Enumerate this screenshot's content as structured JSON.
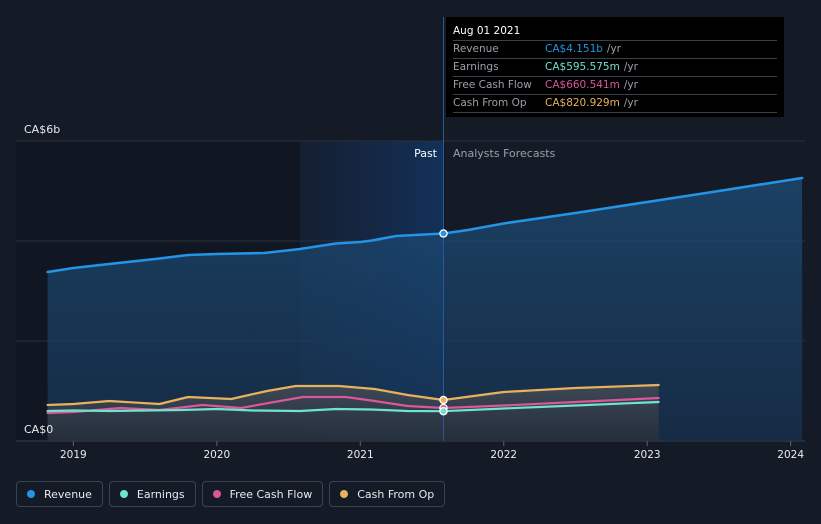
{
  "tooltip": {
    "date": "Aug 01 2021",
    "rows": [
      {
        "label": "Revenue",
        "value": "CA$4.151b",
        "unit": "/yr",
        "color": "#2394e6"
      },
      {
        "label": "Earnings",
        "value": "CA$595.575m",
        "unit": "/yr",
        "color": "#6fe3cc"
      },
      {
        "label": "Free Cash Flow",
        "value": "CA$660.541m",
        "unit": "/yr",
        "color": "#d9579a"
      },
      {
        "label": "Cash From Op",
        "value": "CA$820.929m",
        "unit": "/yr",
        "color": "#e8b25c"
      }
    ]
  },
  "sections": {
    "past": "Past",
    "forecast": "Analysts Forecasts"
  },
  "legend": [
    {
      "label": "Revenue",
      "color": "#2394e6"
    },
    {
      "label": "Earnings",
      "color": "#6fe3cc"
    },
    {
      "label": "Free Cash Flow",
      "color": "#d9579a"
    },
    {
      "label": "Cash From Op",
      "color": "#e8b25c"
    }
  ],
  "chart_data": {
    "type": "line",
    "y_unit": "CA$",
    "ylim": [
      0,
      6
    ],
    "y_tick_labels": [
      "CA$0",
      "CA$6b"
    ],
    "x_tick_labels": [
      "2019",
      "2020",
      "2021",
      "2022",
      "2023",
      "2024"
    ],
    "xlim": [
      2018.6,
      2024.1
    ],
    "past_end": 2021.58,
    "grid": true,
    "series": [
      {
        "name": "Revenue",
        "color": "#2394e6",
        "unit": "billions",
        "x": [
          2018.82,
          2019.0,
          2019.25,
          2019.6,
          2019.8,
          2020.0,
          2020.33,
          2020.58,
          2020.83,
          2021.0,
          2021.08,
          2021.25,
          2021.58,
          2021.75,
          2022.0,
          2022.5,
          2023.0,
          2023.5,
          2024.08
        ],
        "values": [
          3.38,
          3.46,
          3.54,
          3.65,
          3.72,
          3.74,
          3.76,
          3.84,
          3.95,
          3.98,
          4.01,
          4.1,
          4.151,
          4.22,
          4.35,
          4.56,
          4.78,
          5.0,
          5.26
        ]
      },
      {
        "name": "Earnings",
        "color": "#6fe3cc",
        "unit": "billions",
        "x": [
          2018.82,
          2019.0,
          2019.25,
          2019.5,
          2019.75,
          2020.0,
          2020.25,
          2020.58,
          2020.83,
          2021.08,
          2021.33,
          2021.58,
          2022.0,
          2022.5,
          2023.08
        ],
        "values": [
          0.6,
          0.61,
          0.6,
          0.61,
          0.62,
          0.64,
          0.61,
          0.6,
          0.64,
          0.63,
          0.6,
          0.595575,
          0.65,
          0.71,
          0.78
        ]
      },
      {
        "name": "Free Cash Flow",
        "color": "#d9579a",
        "unit": "billions",
        "x": [
          2018.82,
          2019.0,
          2019.33,
          2019.6,
          2019.9,
          2020.17,
          2020.4,
          2020.6,
          2020.9,
          2021.1,
          2021.33,
          2021.58,
          2022.0,
          2022.5,
          2023.08
        ],
        "values": [
          0.56,
          0.58,
          0.66,
          0.62,
          0.72,
          0.66,
          0.78,
          0.88,
          0.88,
          0.8,
          0.7,
          0.660541,
          0.71,
          0.78,
          0.86
        ]
      },
      {
        "name": "Cash From Op",
        "color": "#e8b25c",
        "unit": "billions",
        "x": [
          2018.82,
          2019.0,
          2019.25,
          2019.6,
          2019.8,
          2020.1,
          2020.35,
          2020.55,
          2020.85,
          2021.1,
          2021.33,
          2021.58,
          2022.0,
          2022.5,
          2023.08
        ],
        "values": [
          0.72,
          0.74,
          0.8,
          0.74,
          0.88,
          0.84,
          1.0,
          1.1,
          1.1,
          1.04,
          0.92,
          0.820929,
          0.98,
          1.06,
          1.12
        ]
      }
    ]
  }
}
